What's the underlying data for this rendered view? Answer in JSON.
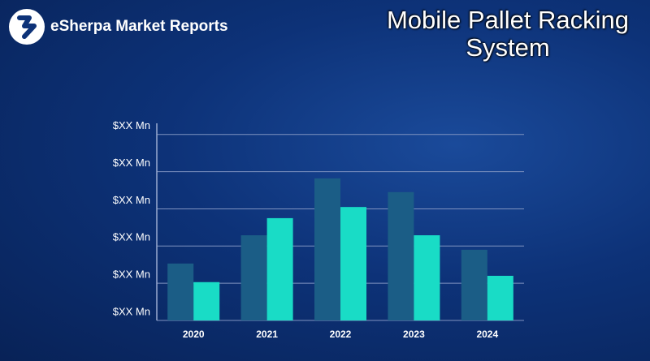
{
  "header": {
    "brand": "eSherpa Market Reports"
  },
  "chart_data": {
    "type": "bar",
    "title": "Mobile Pallet Racking System",
    "categories": [
      "2020",
      "2021",
      "2022",
      "2023",
      "2024"
    ],
    "series": [
      {
        "color": "#1b5d86",
        "values": [
          1.53,
          2.29,
          3.82,
          3.45,
          1.9
        ]
      },
      {
        "color": "#19dcc6",
        "values": [
          1.03,
          2.75,
          3.05,
          2.29,
          1.2
        ]
      }
    ],
    "ylim": [
      0,
      5.3
    ],
    "yticks": [
      {
        "value": 0,
        "label": "$XX Mn"
      },
      {
        "value": 1,
        "label": "$XX Mn"
      },
      {
        "value": 2,
        "label": "$XX Mn"
      },
      {
        "value": 3,
        "label": "$XX Mn"
      },
      {
        "value": 4,
        "label": "$XX Mn"
      },
      {
        "value": 5,
        "label": "$XX Mn"
      }
    ],
    "grid": true
  }
}
